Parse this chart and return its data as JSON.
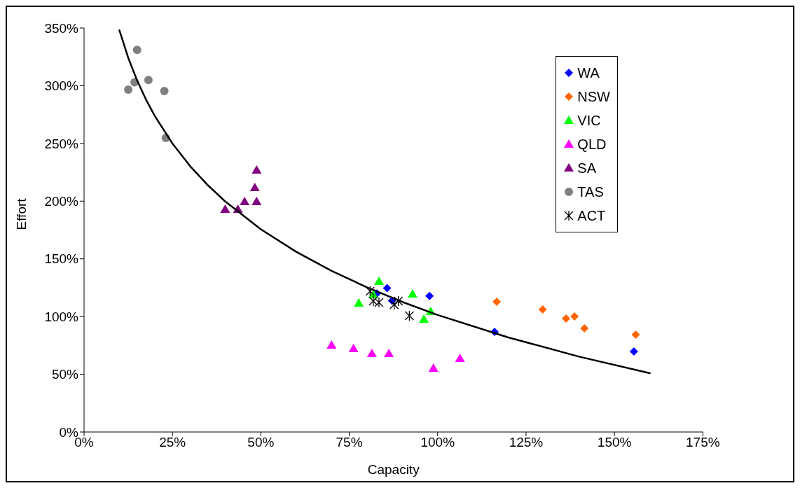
{
  "chart_data": {
    "type": "scatter",
    "xlabel": "Capacity",
    "ylabel": "Effort",
    "xlim": [
      0,
      175
    ],
    "ylim": [
      0,
      350
    ],
    "xticks": [
      {
        "value": 0,
        "label": "0%"
      },
      {
        "value": 25,
        "label": "25%"
      },
      {
        "value": 50,
        "label": "50%"
      },
      {
        "value": 75,
        "label": "75%"
      },
      {
        "value": 100,
        "label": "100%"
      },
      {
        "value": 125,
        "label": "125%"
      },
      {
        "value": 150,
        "label": "150%"
      },
      {
        "value": 175,
        "label": "175%"
      }
    ],
    "yticks": [
      {
        "value": 0,
        "label": "0%"
      },
      {
        "value": 50,
        "label": "50%"
      },
      {
        "value": 100,
        "label": "100%"
      },
      {
        "value": 150,
        "label": "150%"
      },
      {
        "value": 200,
        "label": "200%"
      },
      {
        "value": 250,
        "label": "250%"
      },
      {
        "value": 300,
        "label": "300%"
      },
      {
        "value": 350,
        "label": "350%"
      }
    ],
    "legend": "top right",
    "series": [
      {
        "name": "WA",
        "color": "#0000ff",
        "marker": "diamond",
        "x": [
          82.8,
          85.7,
          87.1,
          97.7,
          116.1,
          155.5
        ],
        "values": [
          120,
          124.6,
          113.7,
          117.9,
          86.7,
          69.7
        ]
      },
      {
        "name": "NSW",
        "color": "#ff6600",
        "marker": "diamond",
        "x": [
          116.7,
          129.7,
          136.3,
          138.7,
          141.5,
          156
        ],
        "values": [
          112.8,
          106.2,
          98.3,
          100.1,
          89.8,
          84.3
        ]
      },
      {
        "name": "VIC",
        "color": "#00ff00",
        "marker": "triangle",
        "x": [
          83.4,
          81.8,
          77.7,
          92.9,
          98,
          96.1
        ],
        "values": [
          130.4,
          118.9,
          111.6,
          119.5,
          104.3,
          97.7
        ]
      },
      {
        "name": "QLD",
        "color": "#ff00ff",
        "marker": "triangle",
        "x": [
          70,
          76.2,
          81.4,
          86.2,
          98.8,
          106.3
        ],
        "values": [
          75.2,
          72.2,
          67.9,
          67.9,
          55.2,
          63.7
        ]
      },
      {
        "name": "SA",
        "color": "#800080",
        "marker": "triangle",
        "x": [
          48.8,
          48.3,
          48.8,
          45.4,
          39.9,
          43.5
        ],
        "values": [
          226.9,
          211.7,
          199.6,
          199.6,
          192.9,
          192.9
        ]
      },
      {
        "name": "TAS",
        "color": "#808080",
        "marker": "circle",
        "x": [
          15,
          18.2,
          14.3,
          12.5,
          22.7,
          23.1
        ],
        "values": [
          331,
          305,
          303,
          296.6,
          295.4,
          254.8
        ]
      },
      {
        "name": "ACT",
        "color": "#000000",
        "marker": "cross",
        "x": [
          80.9,
          81.8,
          83.4,
          87.7,
          88.9,
          92
        ],
        "values": [
          121.9,
          113.4,
          112.2,
          110.4,
          113.4,
          100.7
        ]
      },
      {
        "type": "line",
        "color": "#000000",
        "marker": "none",
        "x": [
          10,
          12.5,
          15,
          17.5,
          20,
          25,
          30,
          35,
          40,
          50,
          60,
          70,
          80,
          90,
          100,
          120,
          140,
          160
        ],
        "values": [
          348,
          324.1,
          304.6,
          288.1,
          273.8,
          249.9,
          230.3,
          213.8,
          199.5,
          175.6,
          156.1,
          139.6,
          125.3,
          112.7,
          101.4,
          81.9,
          65.3,
          51
        ]
      }
    ]
  }
}
